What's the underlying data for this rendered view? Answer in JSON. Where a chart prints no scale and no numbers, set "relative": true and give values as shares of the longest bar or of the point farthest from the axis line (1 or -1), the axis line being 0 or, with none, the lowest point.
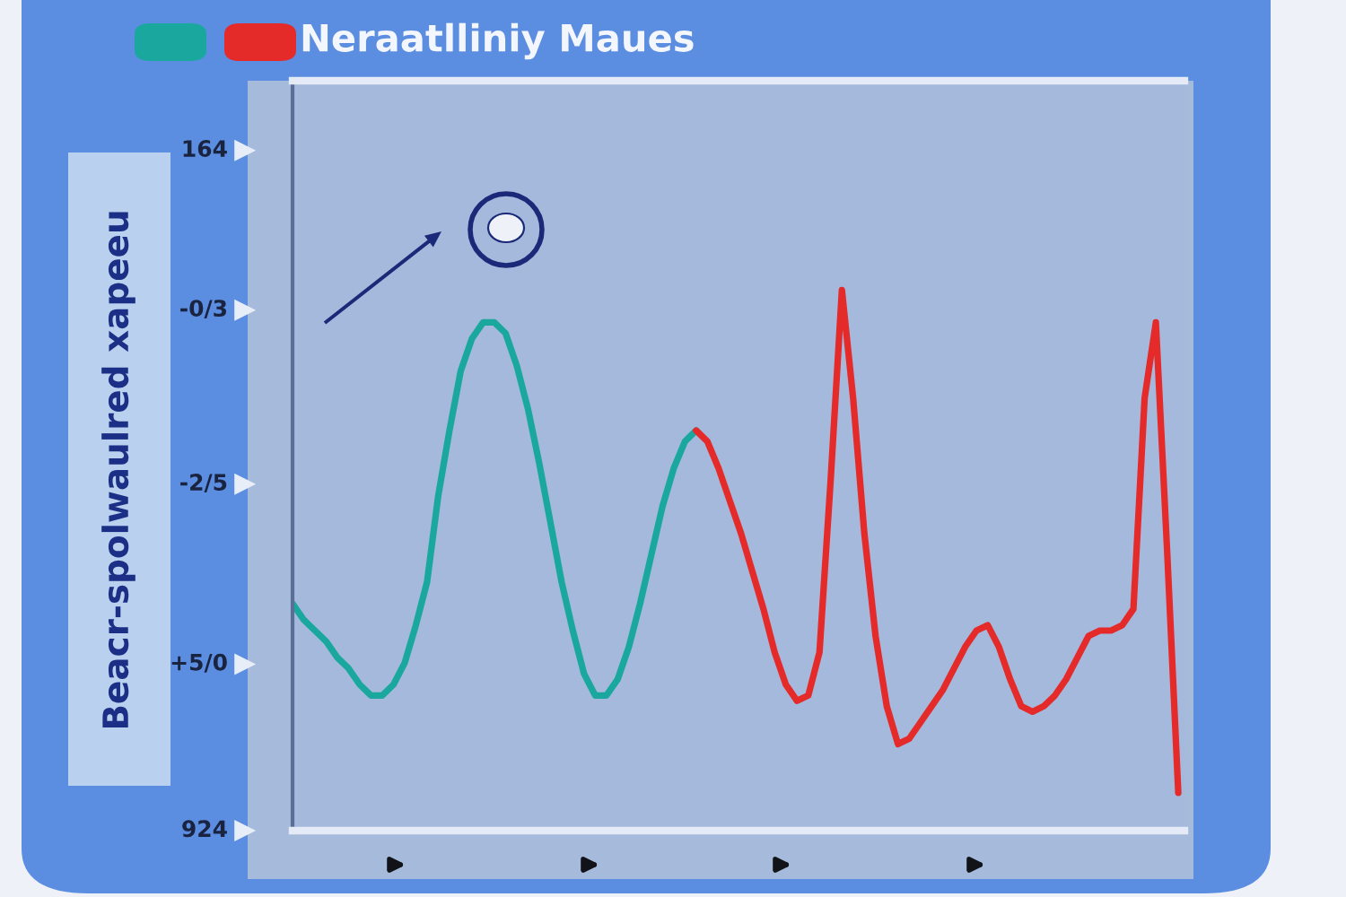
{
  "chart_data": {
    "type": "line",
    "title": "Neraatlliniy Maues",
    "ylabel": "Beacr-spolwaulred xapeeu",
    "relative": true,
    "annotations": [
      "164",
      "-0/3",
      "-2/5",
      "+5/0",
      "924"
    ],
    "categories": [
      null,
      null,
      null,
      null,
      null,
      null,
      null,
      null,
      null,
      null,
      null,
      null,
      null,
      null,
      null,
      null,
      null,
      null,
      null,
      null,
      null,
      null,
      null,
      null,
      null,
      null,
      null,
      null,
      null,
      null,
      null,
      null,
      null,
      null,
      null,
      null,
      null,
      null,
      null,
      null,
      null,
      null,
      null,
      null,
      null,
      null,
      null,
      null,
      null,
      null,
      null,
      null,
      null,
      null,
      null,
      null,
      null,
      null,
      null,
      null,
      null,
      null,
      null,
      null,
      null,
      null,
      null,
      null,
      null,
      null,
      null,
      null,
      null,
      null,
      null,
      null,
      null,
      null,
      null,
      null
    ],
    "series": [
      {
        "color": "#1aa89e",
        "values": [
          0.42,
          0.39,
          0.37,
          0.35,
          0.32,
          0.3,
          0.27,
          0.25,
          0.25,
          0.27,
          0.31,
          0.38,
          0.46,
          0.62,
          0.74,
          0.85,
          0.91,
          0.94,
          0.94,
          0.92,
          0.86,
          0.78,
          0.68,
          0.57,
          0.46,
          0.37,
          0.29,
          0.25,
          0.25,
          0.28,
          0.34,
          0.42,
          0.51,
          0.6,
          0.67,
          0.72,
          0.74,
          null,
          null,
          null,
          null,
          null,
          null,
          null,
          null,
          null,
          null,
          null,
          null,
          null,
          null,
          null,
          null,
          null,
          null,
          null,
          null,
          null,
          null,
          null,
          null,
          null,
          null,
          null,
          null,
          null,
          null,
          null,
          null,
          null,
          null,
          null,
          null,
          null,
          null,
          null,
          null,
          null,
          null,
          null
        ]
      },
      {
        "color": "#e52a2a",
        "values": [
          null,
          null,
          null,
          null,
          null,
          null,
          null,
          null,
          null,
          null,
          null,
          null,
          null,
          null,
          null,
          null,
          null,
          null,
          null,
          null,
          null,
          null,
          null,
          null,
          null,
          null,
          null,
          null,
          null,
          null,
          null,
          null,
          null,
          null,
          null,
          null,
          0.74,
          0.72,
          0.67,
          0.61,
          0.55,
          0.48,
          0.41,
          0.33,
          0.27,
          0.24,
          0.25,
          0.33,
          0.65,
          1,
          0.8,
          0.55,
          0.36,
          0.23,
          0.16,
          0.17,
          0.2,
          0.23,
          0.26,
          0.3,
          0.34,
          0.37,
          0.38,
          0.34,
          0.28,
          0.23,
          0.22,
          0.23,
          0.25,
          0.28,
          0.32,
          0.36,
          0.37,
          0.37,
          0.38,
          0.41,
          0.8,
          0.94,
          0.52,
          0.07
        ]
      }
    ]
  }
}
